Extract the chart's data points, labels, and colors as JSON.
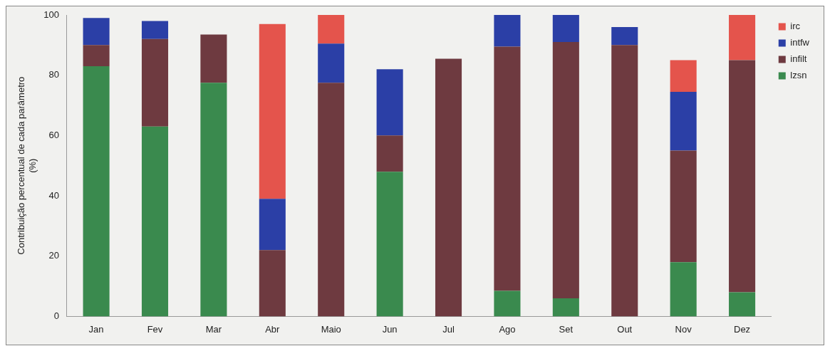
{
  "chart_data": {
    "type": "bar",
    "stacked": true,
    "ylabel": "Contribuição percentual de cada parâmetro (%)",
    "categories": [
      "Jan",
      "Fev",
      "Mar",
      "Abr",
      "Maio",
      "Jun",
      "Jul",
      "Ago",
      "Set",
      "Out",
      "Nov",
      "Dez"
    ],
    "series": [
      {
        "name": "lzsn",
        "color": "#3a8a4e",
        "values": [
          83,
          63,
          77.5,
          null,
          null,
          48,
          null,
          8.5,
          6,
          null,
          18,
          8
        ]
      },
      {
        "name": "infilt",
        "color": "#6e3a40",
        "values": [
          7,
          29,
          16,
          22,
          77.5,
          12,
          85.5,
          81,
          85,
          90,
          37,
          77
        ]
      },
      {
        "name": "intfw",
        "color": "#2b3fa6",
        "values": [
          9,
          6,
          null,
          17,
          13,
          22,
          null,
          10.5,
          9,
          6,
          19.5,
          null
        ]
      },
      {
        "name": "irc",
        "color": "#e4544c",
        "values": [
          null,
          null,
          null,
          58,
          9.5,
          null,
          null,
          null,
          null,
          null,
          10.5,
          15
        ]
      }
    ],
    "ylim": [
      0,
      100
    ],
    "yticks": [
      0,
      20,
      40,
      60,
      80,
      100
    ],
    "grid": false,
    "legend": "top right"
  }
}
